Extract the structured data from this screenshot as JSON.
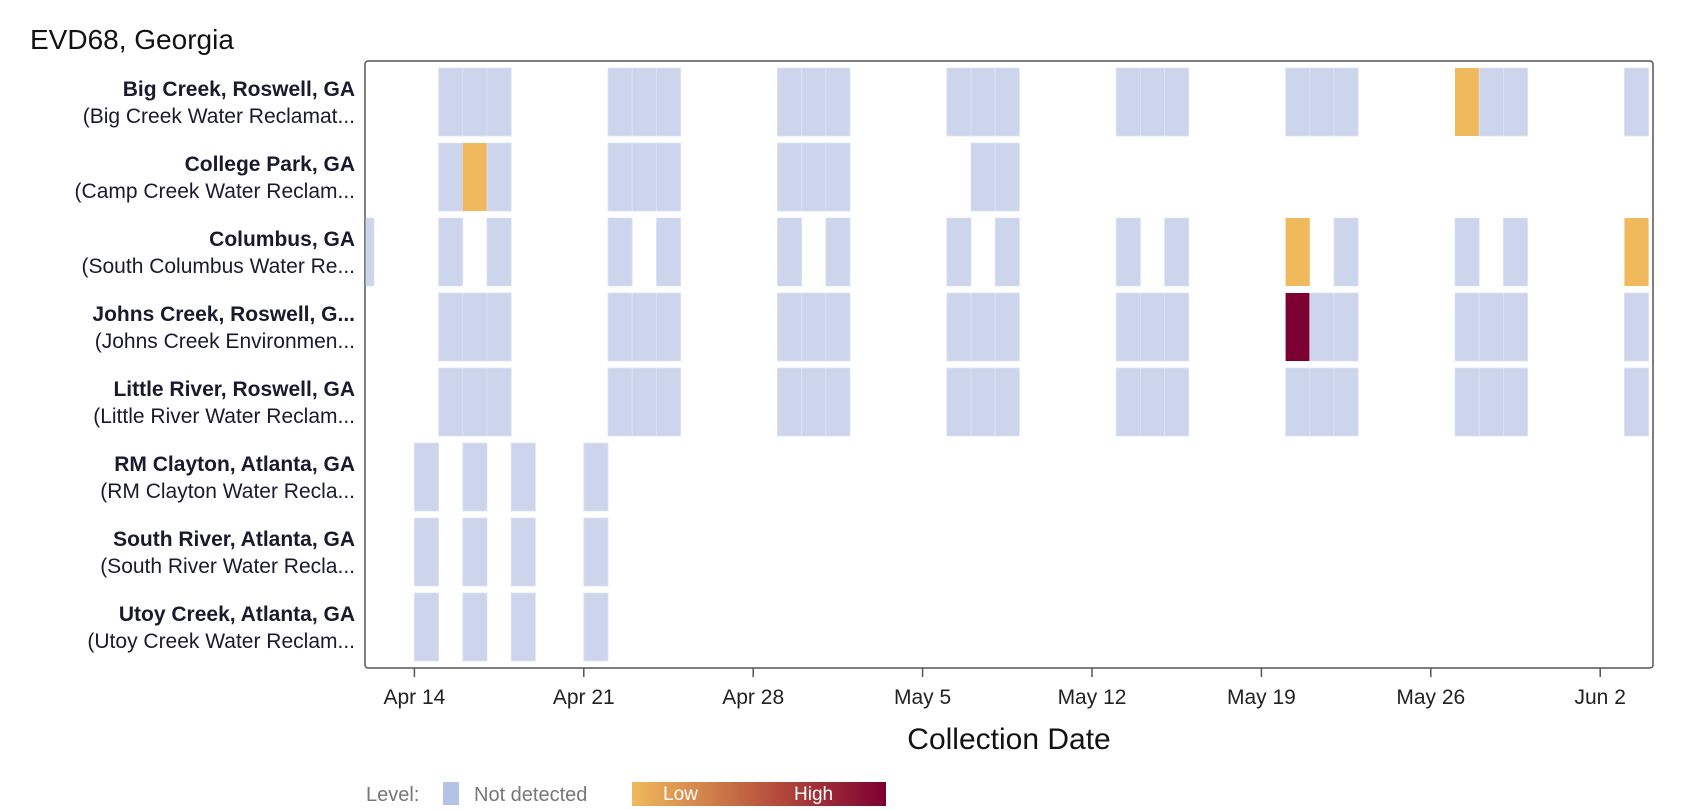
{
  "chart_data": {
    "type": "heatmap",
    "title": "EVD68, Georgia",
    "xlabel": "Collection Date",
    "x_range": [
      "2025-04-12",
      "2025-06-04"
    ],
    "x_ticks": [
      {
        "date": "2025-04-14",
        "label": "Apr 14"
      },
      {
        "date": "2025-04-21",
        "label": "Apr 21"
      },
      {
        "date": "2025-04-28",
        "label": "Apr 28"
      },
      {
        "date": "2025-05-05",
        "label": "May 5"
      },
      {
        "date": "2025-05-12",
        "label": "May 12"
      },
      {
        "date": "2025-05-19",
        "label": "May 19"
      },
      {
        "date": "2025-05-26",
        "label": "May 26"
      },
      {
        "date": "2025-06-02",
        "label": "Jun 2"
      }
    ],
    "sites": [
      {
        "name": "Big Creek, Roswell, GA",
        "facility": "(Big Creek Water Reclamat...",
        "samples": [
          {
            "start": "2025-04-15",
            "level": "not_detected"
          },
          {
            "start": "2025-04-16",
            "level": "not_detected"
          },
          {
            "start": "2025-04-17",
            "level": "not_detected"
          },
          {
            "start": "2025-04-22",
            "level": "not_detected"
          },
          {
            "start": "2025-04-23",
            "level": "not_detected"
          },
          {
            "start": "2025-04-24",
            "level": "not_detected"
          },
          {
            "start": "2025-04-29",
            "level": "not_detected"
          },
          {
            "start": "2025-04-30",
            "level": "not_detected"
          },
          {
            "start": "2025-05-01",
            "level": "not_detected"
          },
          {
            "start": "2025-05-06",
            "level": "not_detected"
          },
          {
            "start": "2025-05-07",
            "level": "not_detected"
          },
          {
            "start": "2025-05-08",
            "level": "not_detected"
          },
          {
            "start": "2025-05-13",
            "level": "not_detected"
          },
          {
            "start": "2025-05-14",
            "level": "not_detected"
          },
          {
            "start": "2025-05-15",
            "level": "not_detected"
          },
          {
            "start": "2025-05-20",
            "level": "not_detected"
          },
          {
            "start": "2025-05-21",
            "level": "not_detected"
          },
          {
            "start": "2025-05-22",
            "level": "not_detected"
          },
          {
            "start": "2025-05-27",
            "level": "low"
          },
          {
            "start": "2025-05-28",
            "level": "not_detected"
          },
          {
            "start": "2025-05-29",
            "level": "not_detected"
          },
          {
            "start": "2025-06-03",
            "level": "not_detected"
          }
        ]
      },
      {
        "name": "College Park, GA",
        "facility": "(Camp Creek Water Reclam...",
        "samples": [
          {
            "start": "2025-04-15",
            "level": "not_detected"
          },
          {
            "start": "2025-04-16",
            "level": "low"
          },
          {
            "start": "2025-04-17",
            "level": "not_detected"
          },
          {
            "start": "2025-04-22",
            "level": "not_detected"
          },
          {
            "start": "2025-04-23",
            "level": "not_detected"
          },
          {
            "start": "2025-04-24",
            "level": "not_detected"
          },
          {
            "start": "2025-04-29",
            "level": "not_detected"
          },
          {
            "start": "2025-04-30",
            "level": "not_detected"
          },
          {
            "start": "2025-05-01",
            "level": "not_detected"
          },
          {
            "start": "2025-05-07",
            "level": "not_detected"
          },
          {
            "start": "2025-05-08",
            "level": "not_detected"
          }
        ]
      },
      {
        "name": "Columbus, GA",
        "facility": "(South Columbus Water Re...",
        "samples": [
          {
            "start": "2025-04-12",
            "level": "not_detected"
          },
          {
            "start": "2025-04-15",
            "level": "not_detected"
          },
          {
            "start": "2025-04-17",
            "level": "not_detected"
          },
          {
            "start": "2025-04-22",
            "level": "not_detected"
          },
          {
            "start": "2025-04-24",
            "level": "not_detected"
          },
          {
            "start": "2025-04-29",
            "level": "not_detected"
          },
          {
            "start": "2025-05-01",
            "level": "not_detected"
          },
          {
            "start": "2025-05-06",
            "level": "not_detected"
          },
          {
            "start": "2025-05-08",
            "level": "not_detected"
          },
          {
            "start": "2025-05-13",
            "level": "not_detected"
          },
          {
            "start": "2025-05-15",
            "level": "not_detected"
          },
          {
            "start": "2025-05-20",
            "level": "low"
          },
          {
            "start": "2025-05-22",
            "level": "not_detected"
          },
          {
            "start": "2025-05-27",
            "level": "not_detected"
          },
          {
            "start": "2025-05-29",
            "level": "not_detected"
          },
          {
            "start": "2025-06-03",
            "level": "low"
          }
        ]
      },
      {
        "name": "Johns Creek, Roswell, G...",
        "facility": "(Johns Creek Environmen...",
        "samples": [
          {
            "start": "2025-04-15",
            "level": "not_detected"
          },
          {
            "start": "2025-04-16",
            "level": "not_detected"
          },
          {
            "start": "2025-04-17",
            "level": "not_detected"
          },
          {
            "start": "2025-04-22",
            "level": "not_detected"
          },
          {
            "start": "2025-04-23",
            "level": "not_detected"
          },
          {
            "start": "2025-04-24",
            "level": "not_detected"
          },
          {
            "start": "2025-04-29",
            "level": "not_detected"
          },
          {
            "start": "2025-04-30",
            "level": "not_detected"
          },
          {
            "start": "2025-05-01",
            "level": "not_detected"
          },
          {
            "start": "2025-05-06",
            "level": "not_detected"
          },
          {
            "start": "2025-05-07",
            "level": "not_detected"
          },
          {
            "start": "2025-05-08",
            "level": "not_detected"
          },
          {
            "start": "2025-05-13",
            "level": "not_detected"
          },
          {
            "start": "2025-05-14",
            "level": "not_detected"
          },
          {
            "start": "2025-05-15",
            "level": "not_detected"
          },
          {
            "start": "2025-05-20",
            "level": "high"
          },
          {
            "start": "2025-05-21",
            "level": "not_detected"
          },
          {
            "start": "2025-05-22",
            "level": "not_detected"
          },
          {
            "start": "2025-05-27",
            "level": "not_detected"
          },
          {
            "start": "2025-05-28",
            "level": "not_detected"
          },
          {
            "start": "2025-05-29",
            "level": "not_detected"
          },
          {
            "start": "2025-06-03",
            "level": "not_detected"
          }
        ]
      },
      {
        "name": "Little River, Roswell, GA",
        "facility": "(Little River Water Reclam...",
        "samples": [
          {
            "start": "2025-04-15",
            "level": "not_detected"
          },
          {
            "start": "2025-04-16",
            "level": "not_detected"
          },
          {
            "start": "2025-04-17",
            "level": "not_detected"
          },
          {
            "start": "2025-04-22",
            "level": "not_detected"
          },
          {
            "start": "2025-04-23",
            "level": "not_detected"
          },
          {
            "start": "2025-04-24",
            "level": "not_detected"
          },
          {
            "start": "2025-04-29",
            "level": "not_detected"
          },
          {
            "start": "2025-04-30",
            "level": "not_detected"
          },
          {
            "start": "2025-05-01",
            "level": "not_detected"
          },
          {
            "start": "2025-05-06",
            "level": "not_detected"
          },
          {
            "start": "2025-05-07",
            "level": "not_detected"
          },
          {
            "start": "2025-05-08",
            "level": "not_detected"
          },
          {
            "start": "2025-05-13",
            "level": "not_detected"
          },
          {
            "start": "2025-05-14",
            "level": "not_detected"
          },
          {
            "start": "2025-05-15",
            "level": "not_detected"
          },
          {
            "start": "2025-05-20",
            "level": "not_detected"
          },
          {
            "start": "2025-05-21",
            "level": "not_detected"
          },
          {
            "start": "2025-05-22",
            "level": "not_detected"
          },
          {
            "start": "2025-05-27",
            "level": "not_detected"
          },
          {
            "start": "2025-05-28",
            "level": "not_detected"
          },
          {
            "start": "2025-05-29",
            "level": "not_detected"
          },
          {
            "start": "2025-06-03",
            "level": "not_detected"
          }
        ]
      },
      {
        "name": "RM Clayton, Atlanta, GA",
        "facility": "(RM Clayton Water Recla...",
        "samples": [
          {
            "start": "2025-04-14",
            "level": "not_detected"
          },
          {
            "start": "2025-04-16",
            "level": "not_detected"
          },
          {
            "start": "2025-04-18",
            "level": "not_detected"
          },
          {
            "start": "2025-04-21",
            "level": "not_detected"
          }
        ]
      },
      {
        "name": "South River, Atlanta, GA",
        "facility": "(South River Water Recla...",
        "samples": [
          {
            "start": "2025-04-14",
            "level": "not_detected"
          },
          {
            "start": "2025-04-16",
            "level": "not_detected"
          },
          {
            "start": "2025-04-18",
            "level": "not_detected"
          },
          {
            "start": "2025-04-21",
            "level": "not_detected"
          }
        ]
      },
      {
        "name": "Utoy Creek, Atlanta, GA",
        "facility": "(Utoy Creek Water Reclam...",
        "samples": [
          {
            "start": "2025-04-14",
            "level": "not_detected"
          },
          {
            "start": "2025-04-16",
            "level": "not_detected"
          },
          {
            "start": "2025-04-18",
            "level": "not_detected"
          },
          {
            "start": "2025-04-21",
            "level": "not_detected"
          }
        ]
      }
    ],
    "legend": {
      "title": "Level:",
      "not_detected_label": "Not detected",
      "low_label": "Low",
      "high_label": "High"
    },
    "colors": {
      "not_detected": "#ccd5ec",
      "low": "#f0b95b",
      "high": "#7d0033",
      "legend_not_detected": "#b3c2e6"
    }
  }
}
